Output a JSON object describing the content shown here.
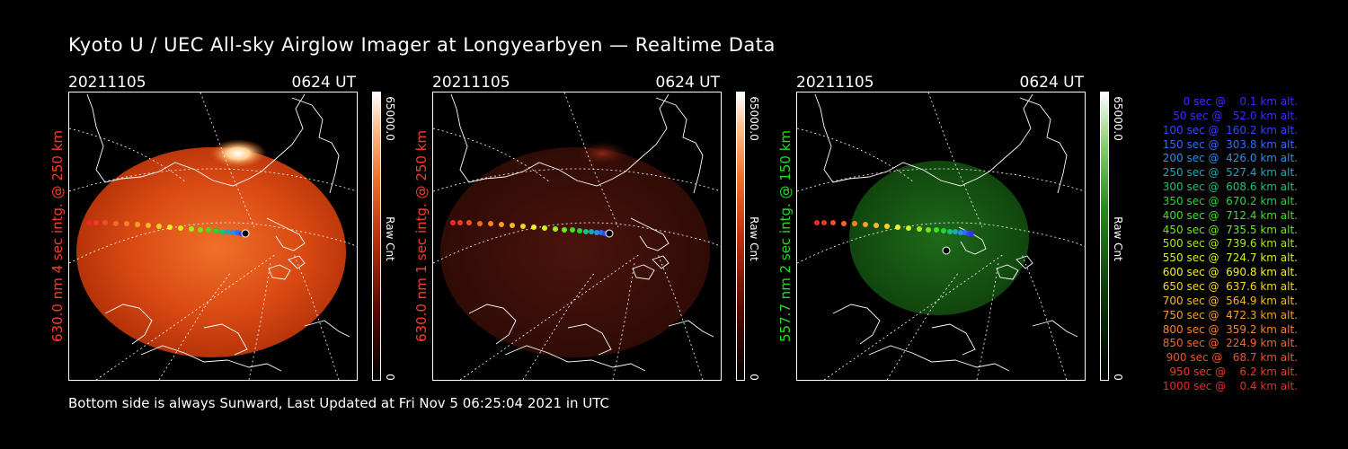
{
  "title": "Kyoto U / UEC All-sky Airglow Imager at Longyearbyen — Realtime Data",
  "footer": "Bottom side is always Sunward, Last Updated at Fri Nov  5 06:25:04 2021 in UTC",
  "panels": [
    {
      "date": "20211105",
      "time": "0624 UT",
      "side_label": "630.0 nm 4 sec intg. @ 250 km",
      "side_color": "#ff3b2b",
      "cbar_max": "65000.0",
      "cbar_unit": "Raw Cnt",
      "cbar_min": "0",
      "brightness": "bright-red"
    },
    {
      "date": "20211105",
      "time": "0624 UT",
      "side_label": "630.0 nm 1 sec intg. @ 250 km",
      "side_color": "#ff3b2b",
      "cbar_max": "65000.0",
      "cbar_unit": "Raw Cnt",
      "cbar_min": "0",
      "brightness": "dim-red"
    },
    {
      "date": "20211105",
      "time": "0624 UT",
      "side_label": "557.7 nm 2 sec intg. @ 150 km",
      "side_color": "#22dd22",
      "cbar_max": "65000.0",
      "cbar_unit": "Raw Cnt",
      "cbar_min": "0",
      "brightness": "green"
    }
  ],
  "legend": [
    {
      "text": "   0 sec @    0.1 km alt.",
      "color": "#3a2cff"
    },
    {
      "text": "  50 sec @   52.0 km alt.",
      "color": "#3a2cff"
    },
    {
      "text": " 100 sec @  160.2 km alt.",
      "color": "#2f48ff"
    },
    {
      "text": " 150 sec @  303.8 km alt.",
      "color": "#2f6cff"
    },
    {
      "text": " 200 sec @  426.0 km alt.",
      "color": "#2a8fe8"
    },
    {
      "text": " 250 sec @  527.4 km alt.",
      "color": "#1ea7b8"
    },
    {
      "text": " 300 sec @  608.6 km alt.",
      "color": "#17c27a"
    },
    {
      "text": " 350 sec @  670.2 km alt.",
      "color": "#1ed83a"
    },
    {
      "text": " 400 sec @  712.4 km alt.",
      "color": "#3fe11a"
    },
    {
      "text": " 450 sec @  735.5 km alt.",
      "color": "#72e61a"
    },
    {
      "text": " 500 sec @  739.6 km alt.",
      "color": "#a6ea1a"
    },
    {
      "text": " 550 sec @  724.7 km alt.",
      "color": "#d6ef1e"
    },
    {
      "text": " 600 sec @  690.8 km alt.",
      "color": "#f4ee2a"
    },
    {
      "text": " 650 sec @  637.6 km alt.",
      "color": "#f8d22a"
    },
    {
      "text": " 700 sec @  564.9 km alt.",
      "color": "#f9b72a"
    },
    {
      "text": " 750 sec @  472.3 km alt.",
      "color": "#f99c2a"
    },
    {
      "text": " 800 sec @  359.2 km alt.",
      "color": "#f8812a"
    },
    {
      "text": " 850 sec @  224.9 km alt.",
      "color": "#f6672a"
    },
    {
      "text": " 900 sec @   68.7 km alt.",
      "color": "#f44f2a"
    },
    {
      "text": " 950 sec @    6.2 km alt.",
      "color": "#f23a2a"
    },
    {
      "text": "1000 sec @    0.4 km alt.",
      "color": "#ef2a2a"
    }
  ]
}
